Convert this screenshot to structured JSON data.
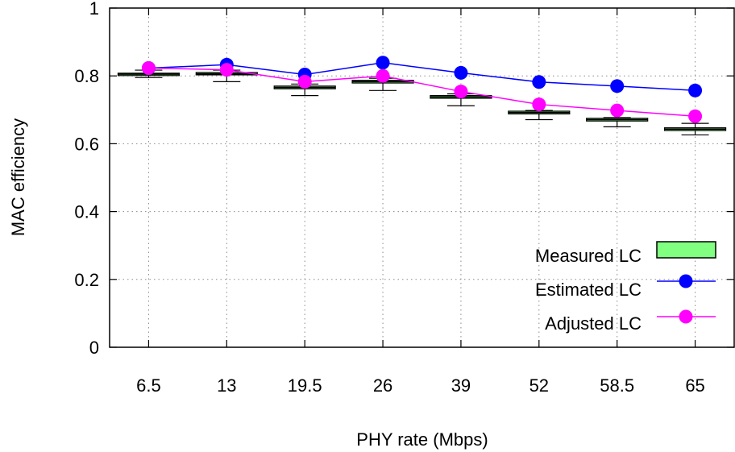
{
  "chart_data": {
    "type": "line",
    "xlabel": "PHY rate (Mbps)",
    "ylabel": "MAC efficiency",
    "categories": [
      "6.5",
      "13",
      "19.5",
      "26",
      "39",
      "52",
      "58.5",
      "65"
    ],
    "ylim": [
      0,
      1
    ],
    "yticks": [
      "0",
      "0.2",
      "0.4",
      "0.6",
      "0.8",
      "1"
    ],
    "grid": "dotted",
    "legend_position": "bottom-right",
    "series": [
      {
        "name": "Measured LC",
        "type": "box",
        "color": "#80ff80",
        "median": [
          0.805,
          0.806,
          0.766,
          0.783,
          0.738,
          0.692,
          0.671,
          0.643
        ],
        "q1": [
          0.801,
          0.803,
          0.762,
          0.779,
          0.734,
          0.688,
          0.667,
          0.639
        ],
        "q3": [
          0.808,
          0.81,
          0.77,
          0.787,
          0.742,
          0.696,
          0.675,
          0.647
        ],
        "whisker_low": [
          0.795,
          0.783,
          0.742,
          0.757,
          0.712,
          0.671,
          0.65,
          0.626
        ],
        "whisker_high": [
          0.817,
          0.817,
          0.776,
          0.793,
          0.747,
          0.698,
          0.677,
          0.66
        ]
      },
      {
        "name": "Estimated LC",
        "type": "line",
        "color": "#0000ff",
        "marker": "circle",
        "values": [
          0.823,
          0.833,
          0.804,
          0.839,
          0.809,
          0.782,
          0.77,
          0.757
        ]
      },
      {
        "name": "Adjusted LC",
        "type": "line",
        "color": "#ff00ff",
        "marker": "circle",
        "values": [
          0.823,
          0.818,
          0.783,
          0.8,
          0.754,
          0.716,
          0.698,
          0.681
        ]
      }
    ]
  }
}
